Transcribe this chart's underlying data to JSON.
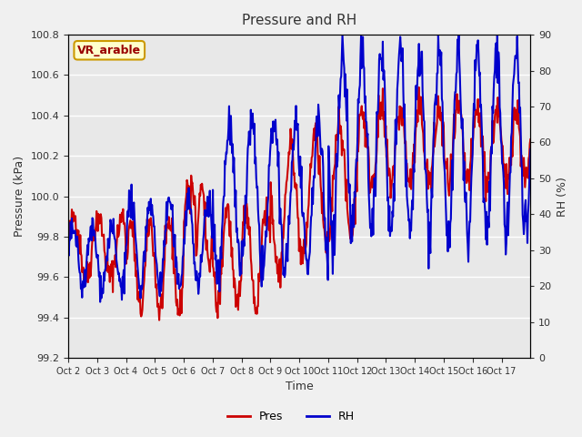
{
  "title": "Pressure and RH",
  "xlabel": "Time",
  "ylabel_left": "Pressure (kPa)",
  "ylabel_right": "RH (%)",
  "annotation": "VR_arable",
  "legend_labels": [
    "Pres",
    "RH"
  ],
  "pres_color": "#cc0000",
  "rh_color": "#0000cc",
  "ylim_left": [
    99.2,
    100.8
  ],
  "ylim_right": [
    0,
    90
  ],
  "yticks_left": [
    99.2,
    99.4,
    99.6,
    99.8,
    100.0,
    100.2,
    100.4,
    100.6,
    100.8
  ],
  "yticks_right": [
    0,
    10,
    20,
    30,
    40,
    50,
    60,
    70,
    80,
    90
  ],
  "xtick_labels": [
    "Oct 2",
    "Oct 3",
    "Oct 4",
    "Oct 5",
    "Oct 6",
    "Oct 7",
    "Oct 8",
    "Oct 9",
    "Oct 10",
    "Oct 11",
    "Oct 12",
    "Oct 13",
    "Oct 14",
    "Oct 15",
    "Oct 16",
    "Oct 17"
  ],
  "fig_bg": "#f0f0f0",
  "plot_bg": "#e8e8e8",
  "grid_color": "#ffffff",
  "annotation_bg": "#ffffcc",
  "annotation_border": "#cc9900",
  "annotation_text_color": "#990000",
  "linewidth": 1.5
}
